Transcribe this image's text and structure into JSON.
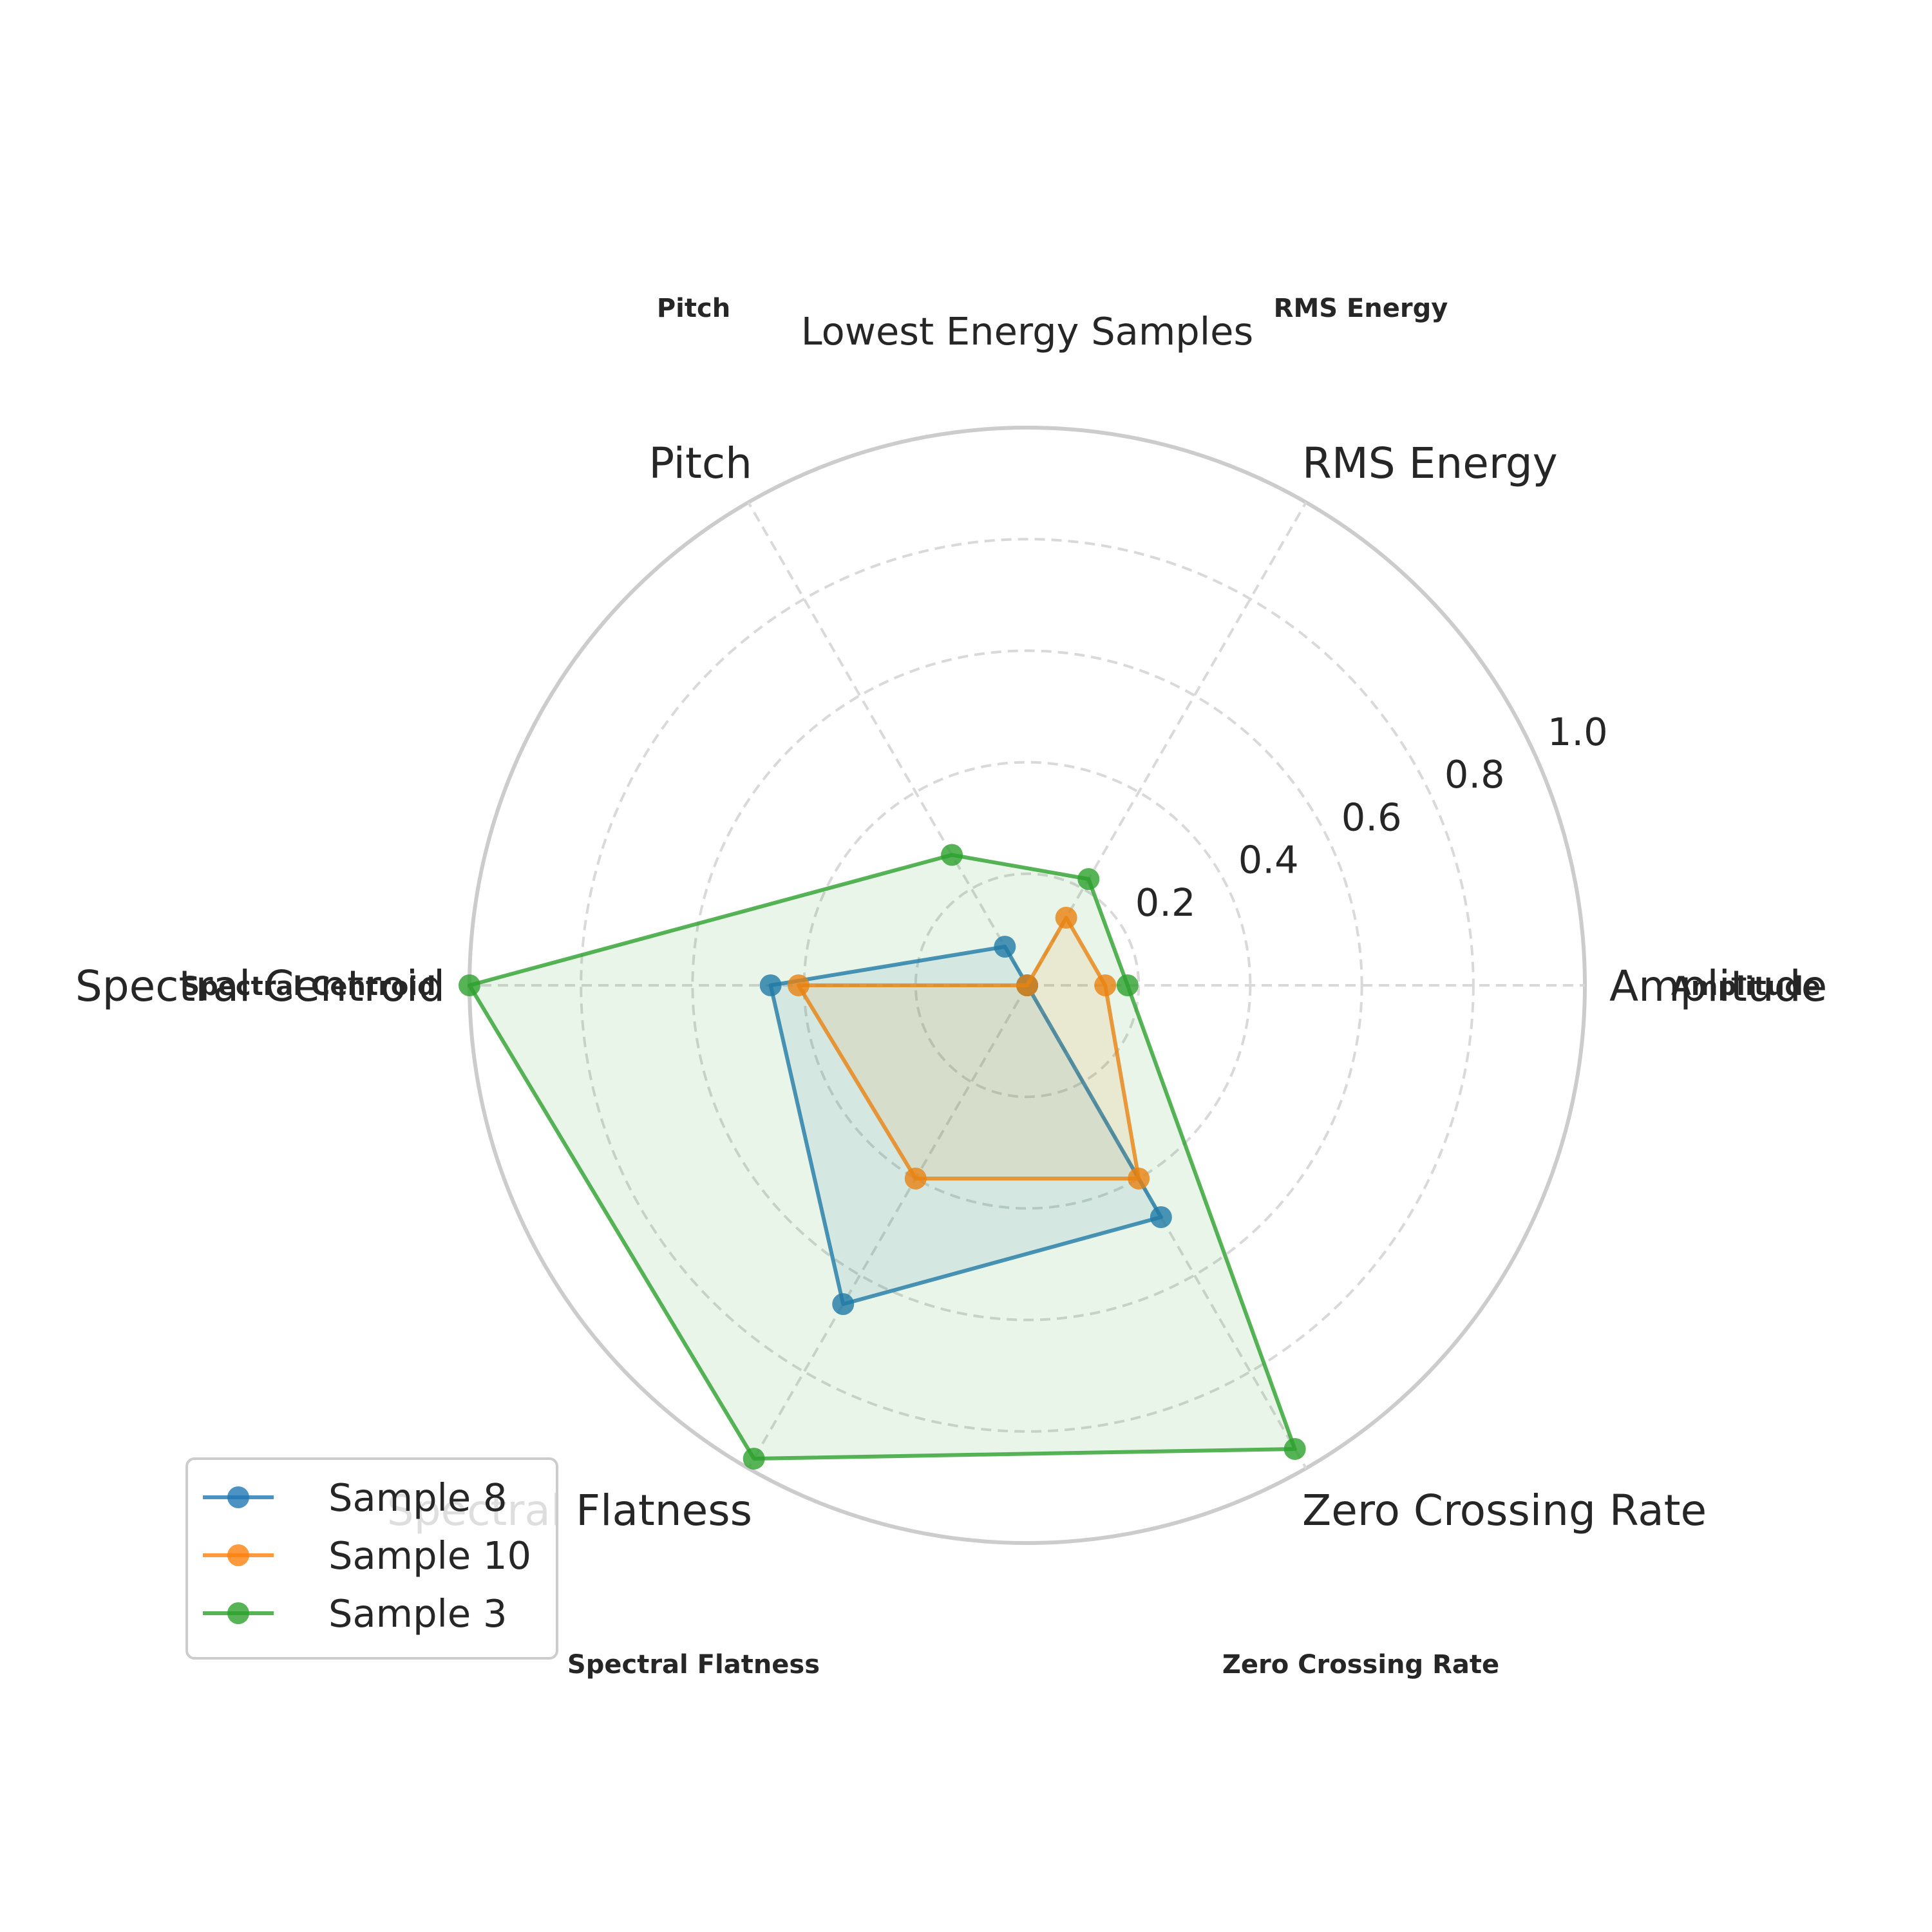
{
  "chart_data": {
    "type": "radar",
    "title": "Lowest Energy Samples",
    "axes": [
      "Amplitude",
      "RMS Energy",
      "Pitch",
      "Spectral Centroid",
      "Spectral Flatness",
      "Zero Crossing Rate"
    ],
    "rlim": [
      0,
      1.0
    ],
    "rticks": [
      "0.2",
      "0.4",
      "0.6",
      "0.8",
      "1.0"
    ],
    "grid": true,
    "legend_position": "lower-left",
    "series": [
      {
        "name": "Sample 8",
        "color": "#1f77b4",
        "values": [
          0.0,
          0.0,
          0.08,
          0.46,
          0.66,
          0.48
        ]
      },
      {
        "name": "Sample 10",
        "color": "#ff7f0e",
        "values": [
          0.14,
          0.14,
          0.0,
          0.41,
          0.4,
          0.4
        ]
      },
      {
        "name": "Sample 3",
        "color": "#2ca02c",
        "values": [
          0.18,
          0.22,
          0.27,
          1.0,
          0.98,
          0.96
        ]
      }
    ]
  }
}
